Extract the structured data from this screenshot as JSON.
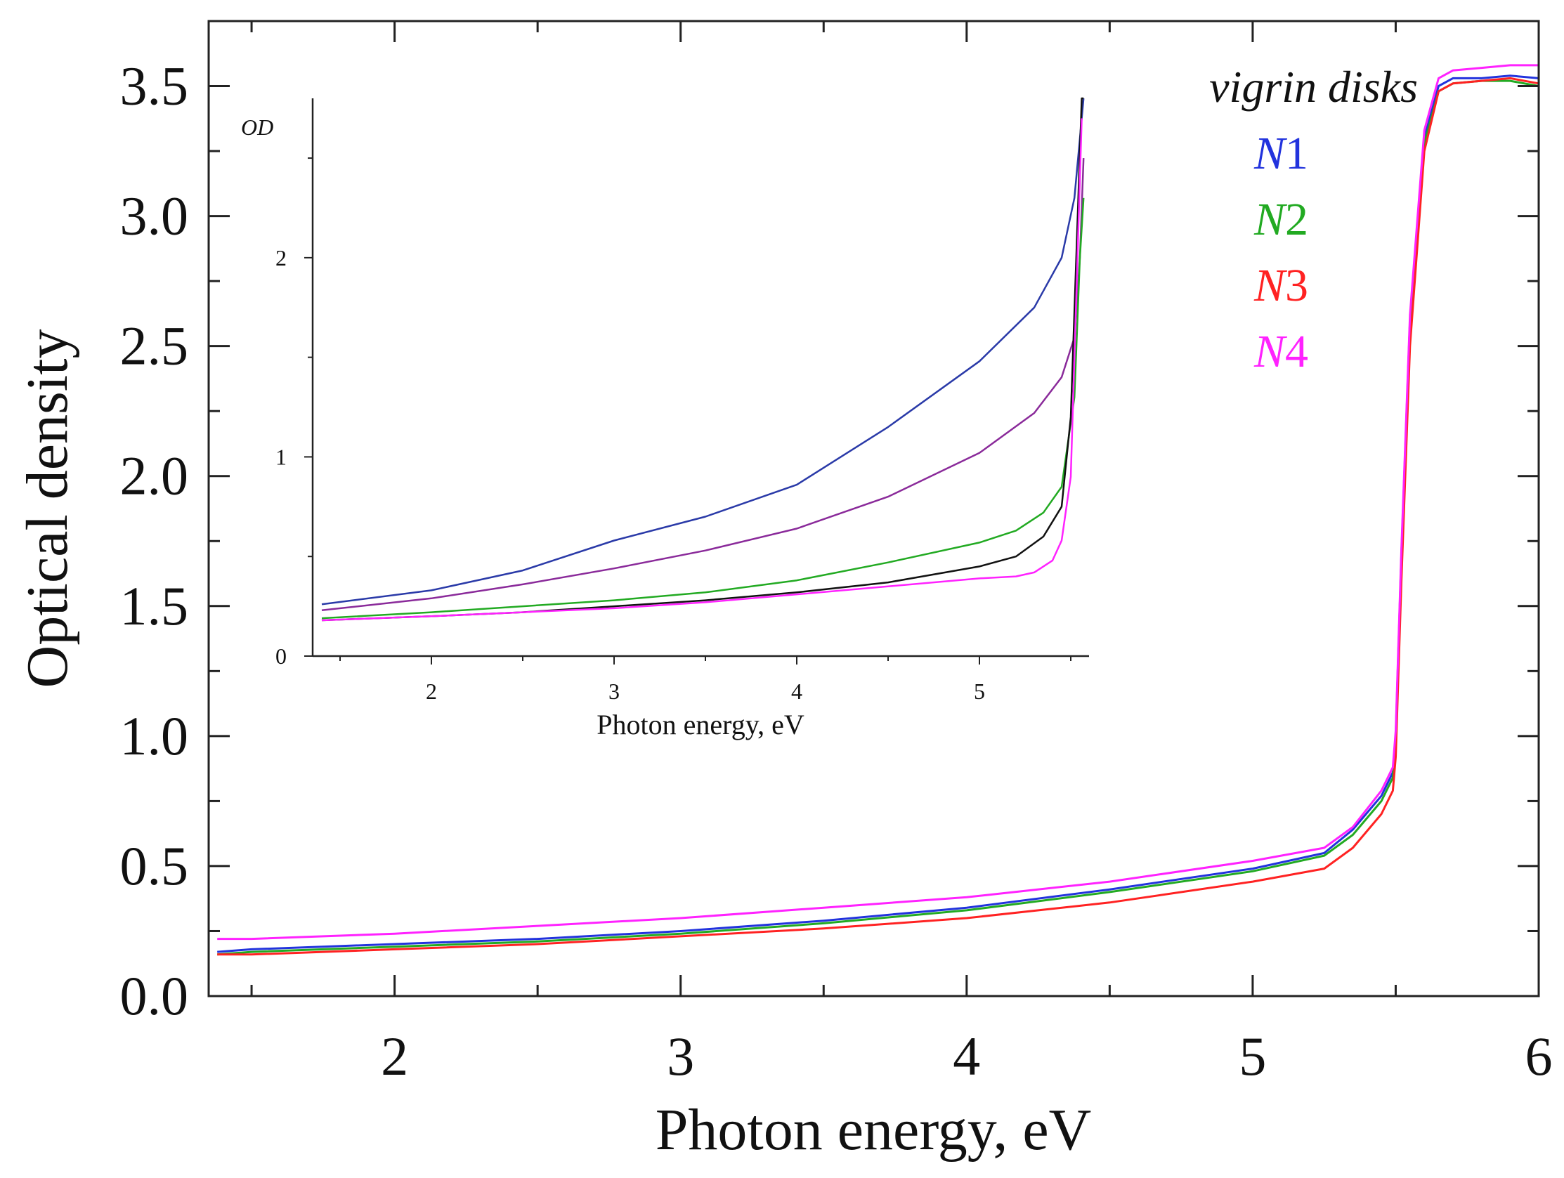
{
  "chart_data": [
    {
      "type": "line",
      "xlabel": "Photon energy, eV",
      "ylabel": "Optical density",
      "xlim": [
        1.35,
        6
      ],
      "ylim": [
        0,
        3.75
      ],
      "x_ticks": [
        2,
        3,
        4,
        5,
        6
      ],
      "x_tick_labels": [
        "2",
        "3",
        "4",
        "5",
        "6"
      ],
      "y_ticks": [
        0,
        0.5,
        1,
        1.5,
        2,
        2.5,
        3,
        3.5
      ],
      "y_tick_labels": [
        "0.0",
        "0.5",
        "1.0",
        "1.5",
        "2.0",
        "2.5",
        "3.0",
        "3.5"
      ],
      "legend": {
        "title": "vigrin disks",
        "position": "top-right",
        "entries": [
          {
            "prefix": "N",
            "suffix": "1",
            "color": "#2233dd"
          },
          {
            "prefix": "N",
            "suffix": "2",
            "color": "#22aa22"
          },
          {
            "prefix": "N",
            "suffix": "3",
            "color": "#ff2222"
          },
          {
            "prefix": "N",
            "suffix": "4",
            "color": "#ff22ff"
          }
        ]
      },
      "series": [
        {
          "name": "N1",
          "color": "#2233dd",
          "x": [
            1.38,
            1.5,
            2,
            2.5,
            3,
            3.5,
            4,
            4.5,
            5,
            5.25,
            5.35,
            5.45,
            5.49,
            5.5,
            5.52,
            5.55,
            5.6,
            5.65,
            5.7,
            5.8,
            5.9,
            6
          ],
          "y": [
            0.17,
            0.18,
            0.2,
            0.22,
            0.25,
            0.29,
            0.34,
            0.41,
            0.49,
            0.55,
            0.64,
            0.77,
            0.86,
            1.0,
            1.7,
            2.6,
            3.3,
            3.5,
            3.53,
            3.53,
            3.54,
            3.53
          ]
        },
        {
          "name": "N2",
          "color": "#22aa22",
          "x": [
            1.38,
            1.5,
            2,
            2.5,
            3,
            3.5,
            4,
            4.5,
            5,
            5.25,
            5.35,
            5.45,
            5.49,
            5.5,
            5.52,
            5.55,
            5.6,
            5.65,
            5.7,
            5.8,
            5.9,
            6
          ],
          "y": [
            0.16,
            0.17,
            0.19,
            0.21,
            0.24,
            0.28,
            0.33,
            0.4,
            0.48,
            0.54,
            0.62,
            0.75,
            0.84,
            0.98,
            1.68,
            2.58,
            3.28,
            3.48,
            3.51,
            3.52,
            3.52,
            3.5
          ]
        },
        {
          "name": "N3",
          "color": "#ff2222",
          "x": [
            1.38,
            1.5,
            2,
            2.5,
            3,
            3.5,
            4,
            4.5,
            5,
            5.25,
            5.35,
            5.45,
            5.49,
            5.5,
            5.52,
            5.55,
            5.6,
            5.65,
            5.7,
            5.8,
            5.9,
            6
          ],
          "y": [
            0.16,
            0.16,
            0.18,
            0.2,
            0.23,
            0.26,
            0.3,
            0.36,
            0.44,
            0.49,
            0.57,
            0.7,
            0.79,
            0.92,
            1.6,
            2.5,
            3.25,
            3.48,
            3.51,
            3.52,
            3.53,
            3.51
          ]
        },
        {
          "name": "N4",
          "color": "#ff22ff",
          "x": [
            1.38,
            1.5,
            2,
            2.5,
            3,
            3.5,
            4,
            4.5,
            5,
            5.25,
            5.35,
            5.45,
            5.49,
            5.5,
            5.52,
            5.55,
            5.6,
            5.65,
            5.7,
            5.8,
            5.9,
            6
          ],
          "y": [
            0.22,
            0.22,
            0.24,
            0.27,
            0.3,
            0.34,
            0.38,
            0.44,
            0.52,
            0.57,
            0.65,
            0.79,
            0.88,
            1.02,
            1.72,
            2.62,
            3.33,
            3.53,
            3.56,
            3.57,
            3.58,
            3.58
          ]
        }
      ]
    },
    {
      "type": "line",
      "xlabel": "Photon energy, eV",
      "ylabel": "OD",
      "xlim": [
        1.35,
        5.6
      ],
      "ylim": [
        0,
        2.8
      ],
      "x_ticks": [
        2,
        3,
        4,
        5
      ],
      "x_tick_labels": [
        "2",
        "3",
        "4",
        "5"
      ],
      "y_ticks": [
        0,
        1,
        2
      ],
      "y_tick_labels": [
        "0",
        "1",
        "2"
      ],
      "series": [
        {
          "name": "blue",
          "color": "#2a3aa8",
          "x": [
            1.4,
            2,
            2.5,
            3,
            3.5,
            4,
            4.5,
            5,
            5.3,
            5.45,
            5.52,
            5.55,
            5.57
          ],
          "y": [
            0.26,
            0.33,
            0.43,
            0.58,
            0.7,
            0.86,
            1.15,
            1.48,
            1.75,
            2.0,
            2.3,
            2.6,
            2.8
          ]
        },
        {
          "name": "purple",
          "color": "#8a2a9a",
          "x": [
            1.4,
            2,
            2.5,
            3,
            3.5,
            4,
            4.5,
            5,
            5.3,
            5.45,
            5.52,
            5.55,
            5.57
          ],
          "y": [
            0.23,
            0.29,
            0.36,
            0.44,
            0.53,
            0.64,
            0.8,
            1.02,
            1.22,
            1.4,
            1.6,
            2.0,
            2.5
          ]
        },
        {
          "name": "green",
          "color": "#22aa22",
          "x": [
            1.4,
            2,
            2.5,
            3,
            3.5,
            4,
            4.5,
            5,
            5.2,
            5.35,
            5.45,
            5.52,
            5.55,
            5.57
          ],
          "y": [
            0.19,
            0.22,
            0.25,
            0.28,
            0.32,
            0.38,
            0.47,
            0.57,
            0.63,
            0.72,
            0.85,
            1.3,
            2.0,
            2.3
          ]
        },
        {
          "name": "black",
          "color": "#111111",
          "x": [
            1.4,
            2,
            2.5,
            3,
            3.5,
            4,
            4.5,
            5,
            5.2,
            5.35,
            5.45,
            5.5,
            5.53,
            5.56,
            5.57
          ],
          "y": [
            0.18,
            0.2,
            0.22,
            0.25,
            0.28,
            0.32,
            0.37,
            0.45,
            0.5,
            0.6,
            0.75,
            1.2,
            2.0,
            2.8,
            2.9
          ]
        },
        {
          "name": "magenta",
          "color": "#ff22ff",
          "x": [
            1.4,
            2,
            2.5,
            3,
            3.5,
            4,
            4.5,
            5,
            5.2,
            5.3,
            5.4,
            5.45,
            5.5,
            5.53,
            5.56
          ],
          "y": [
            0.18,
            0.2,
            0.22,
            0.24,
            0.27,
            0.31,
            0.35,
            0.39,
            0.4,
            0.42,
            0.48,
            0.58,
            0.9,
            1.8,
            2.7
          ]
        }
      ]
    }
  ]
}
